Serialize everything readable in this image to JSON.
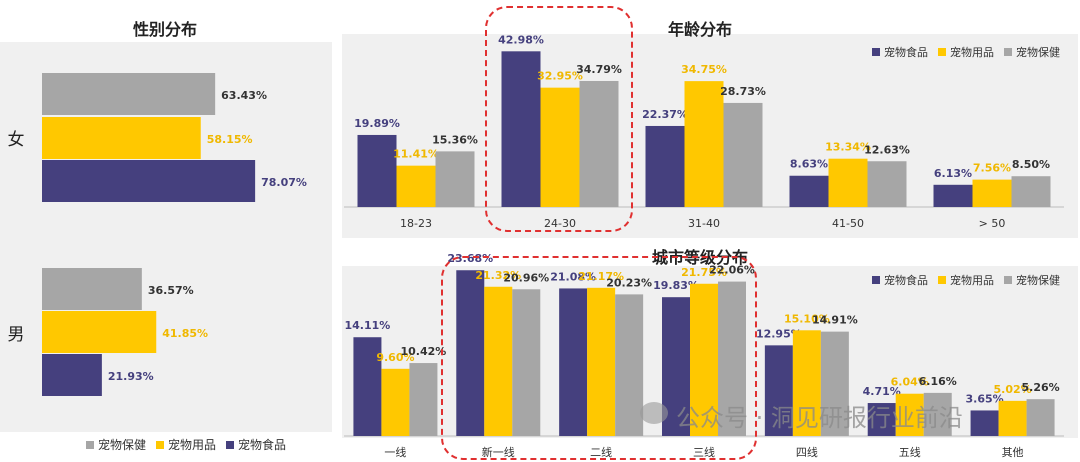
{
  "colors": {
    "food": "#45407e",
    "supplies": "#ffc800",
    "health": "#a6a6a6",
    "label_food": "#45407e",
    "label_supplies": "#f0b800",
    "label_health": "#333333"
  },
  "legend": {
    "food": "宠物食品",
    "supplies": "宠物用品",
    "health": "宠物保健"
  },
  "watermark": "公众号 · 洞见研报行业前沿",
  "chart_data": [
    {
      "id": "gender",
      "type": "bar",
      "orientation": "horizontal",
      "title": "性别分布",
      "categories": [
        "女",
        "男"
      ],
      "series": [
        {
          "name": "宠物保健",
          "values": [
            63.43,
            36.57
          ]
        },
        {
          "name": "宠物用品",
          "values": [
            58.15,
            41.85
          ]
        },
        {
          "name": "宠物食品",
          "values": [
            78.07,
            21.93
          ]
        }
      ],
      "labels": {
        "宠物保健": [
          "63.43%",
          "36.57%"
        ],
        "宠物用品": [
          "58.15%",
          "41.85%"
        ],
        "宠物食品": [
          "78.07%",
          "21.93%"
        ]
      },
      "xlim": [
        0,
        100
      ],
      "legend_position": "bottom"
    },
    {
      "id": "age",
      "type": "bar",
      "title": "年龄分布",
      "categories": [
        "18-23",
        "24-30",
        "31-40",
        "41-50",
        "> 50"
      ],
      "series": [
        {
          "name": "宠物食品",
          "values": [
            19.89,
            42.98,
            22.37,
            8.63,
            6.13
          ]
        },
        {
          "name": "宠物用品",
          "values": [
            11.41,
            32.95,
            34.75,
            13.34,
            7.56
          ]
        },
        {
          "name": "宠物保健",
          "values": [
            15.36,
            34.79,
            28.73,
            12.63,
            8.5
          ]
        }
      ],
      "labels": {
        "宠物食品": [
          "19.89%",
          "42.98%",
          "22.37%",
          "8.63%",
          "6.13%"
        ],
        "宠物用品": [
          "11.41%",
          "32.95%",
          "34.75%",
          "13.34%",
          "7.56%"
        ],
        "宠物保健": [
          "15.36%",
          "34.79%",
          "28.73%",
          "12.63%",
          "8.50%"
        ]
      },
      "ylim": [
        0,
        45
      ],
      "highlight_category": "24-30",
      "legend_position": "top-right"
    },
    {
      "id": "city",
      "type": "bar",
      "title": "城市等级分布",
      "categories": [
        "一线",
        "新一线",
        "二线",
        "三线",
        "四线",
        "五线",
        "其他"
      ],
      "series": [
        {
          "name": "宠物食品",
          "values": [
            14.11,
            23.68,
            21.08,
            19.83,
            12.95,
            4.71,
            3.65
          ]
        },
        {
          "name": "宠物用品",
          "values": [
            9.6,
            21.32,
            21.17,
            21.75,
            15.1,
            6.04,
            5.02
          ]
        },
        {
          "name": "宠物保健",
          "values": [
            10.42,
            20.96,
            20.23,
            22.06,
            14.91,
            6.16,
            5.26
          ]
        }
      ],
      "labels": {
        "宠物食品": [
          "14.11%",
          "23.68%",
          "21.08%",
          "19.83%",
          "12.95%",
          "4.71%",
          "3.65%"
        ],
        "宠物用品": [
          "9.60%",
          "21.32%",
          "21.17%",
          "21.75%",
          "15.10%",
          "6.04%",
          "5.02%"
        ],
        "宠物保健": [
          "10.42%",
          "20.96%",
          "20.23%",
          "22.06%",
          "14.91%",
          "6.16%",
          "5.26%"
        ]
      },
      "ylim": [
        0,
        24
      ],
      "highlight_categories": [
        "新一线",
        "二线",
        "三线"
      ],
      "legend_position": "top-right"
    }
  ]
}
